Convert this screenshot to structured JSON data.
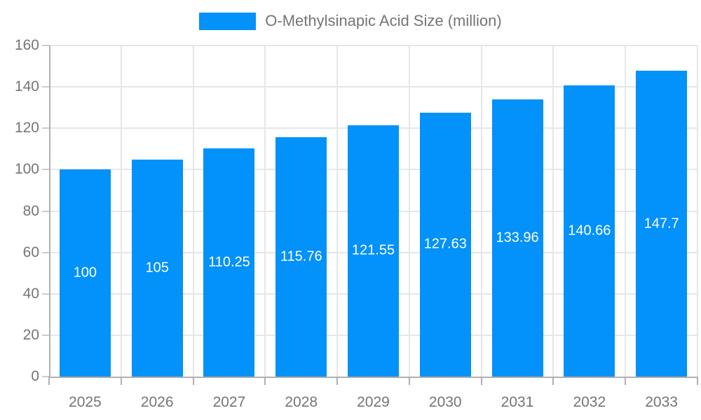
{
  "legend": {
    "label": "O-Methylsinapic Acid Size (million)"
  },
  "chart_data": {
    "type": "bar",
    "title": "",
    "legend_label": "O-Methylsinapic Acid Size (million)",
    "categories": [
      "2025",
      "2026",
      "2027",
      "2028",
      "2029",
      "2030",
      "2031",
      "2032",
      "2033"
    ],
    "values": [
      100,
      105,
      110.25,
      115.76,
      121.55,
      127.63,
      133.96,
      140.66,
      147.7
    ],
    "value_labels": [
      "100",
      "105",
      "110.25",
      "115.76",
      "121.55",
      "127.63",
      "133.96",
      "140.66",
      "147.7"
    ],
    "xlabel": "",
    "ylabel": "",
    "ylim": [
      0,
      160
    ],
    "ytick_step": 20,
    "grid": true,
    "legend_position": "top",
    "colors": {
      "bar": "#0391fa",
      "grid": "#e6e6e6",
      "axis": "#b0b0b0",
      "y_tick": "#cccccc",
      "axis_text": "#757575",
      "bar_label_text": "#ffffff"
    }
  }
}
